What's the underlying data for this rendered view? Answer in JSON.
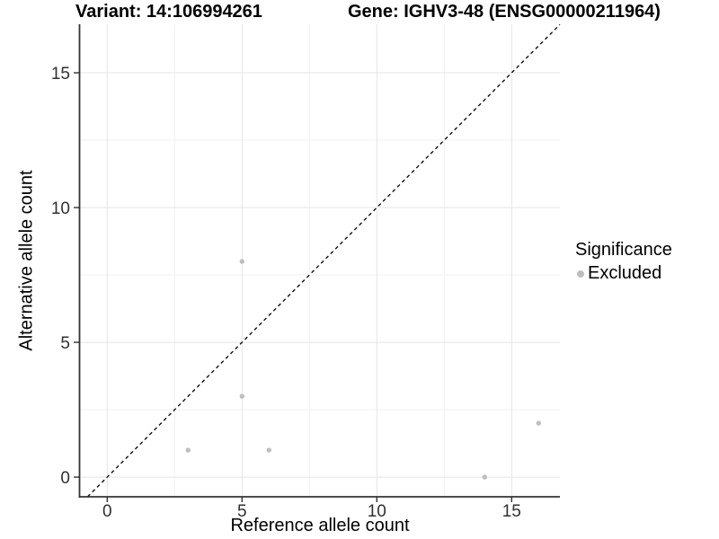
{
  "titles": {
    "variant": "Variant: 14:106994261",
    "gene": "Gene: IGHV3-48 (ENSG00000211964)"
  },
  "axes": {
    "x": {
      "label": "Reference allele count",
      "ticks": [
        0,
        5,
        10,
        15
      ],
      "minor_ticks": [
        2.5,
        7.5,
        12.5
      ],
      "range": [
        -1.01,
        16.79
      ]
    },
    "y": {
      "label": "Alternative allele count",
      "ticks": [
        0,
        5,
        10,
        15
      ],
      "minor_ticks": [
        2.5,
        7.5,
        12.5
      ],
      "range": [
        -0.73,
        16.8
      ]
    }
  },
  "legend": {
    "title": "Significance",
    "items": [
      {
        "label": "Excluded",
        "color": "#bebebe"
      }
    ]
  },
  "chart_data": {
    "type": "scatter",
    "title_left": "Variant: 14:106994261",
    "title_right": "Gene: IGHV3-48 (ENSG00000211964)",
    "xlabel": "Reference allele count",
    "ylabel": "Alternative allele count",
    "xlim": [
      -1.01,
      16.79
    ],
    "ylim": [
      -0.73,
      16.8
    ],
    "x_ticks": [
      0,
      5,
      10,
      15
    ],
    "y_ticks": [
      0,
      5,
      10,
      15
    ],
    "grid": true,
    "legend_title": "Significance",
    "legend_position": "right",
    "series": [
      {
        "name": "Excluded",
        "color": "#bebebe",
        "points": [
          [
            3,
            1
          ],
          [
            5,
            3
          ],
          [
            5,
            8
          ],
          [
            6,
            1
          ],
          [
            14,
            0
          ],
          [
            16,
            2
          ]
        ]
      }
    ],
    "reference_line": {
      "type": "identity y=x",
      "style": "dashed",
      "color": "#000000"
    }
  },
  "style": {
    "background": "#ffffff",
    "point_color": "#bebebe",
    "grid_major_color": "#e4e4e4",
    "grid_minor_color": "#f2f2f2",
    "axis_line_color": "#333333",
    "tick_label_color": "#303030",
    "text_color": "#000000",
    "dashed_line_color": "#000000"
  }
}
